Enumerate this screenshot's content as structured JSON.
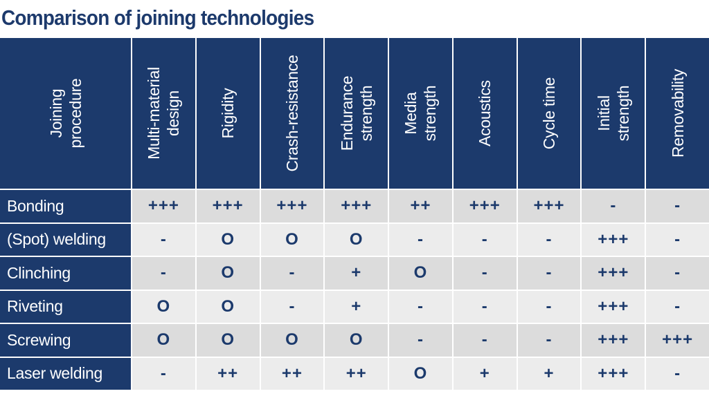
{
  "chart_data": {
    "type": "table",
    "title": "Comparison of joining technologies",
    "corner_header": "Joining\nprocedure",
    "columns": [
      "Multi-material\ndesign",
      "Rigidity",
      "Crash-resistance",
      "Endurance\nstrength",
      "Media\nstrength",
      "Acoustics",
      "Cycle time",
      "Initial\nstrength",
      "Removability"
    ],
    "rows": [
      {
        "label": "Bonding",
        "values": [
          "+++",
          "+++",
          "+++",
          "+++",
          "++",
          "+++",
          "+++",
          "-",
          "-"
        ]
      },
      {
        "label": "(Spot) welding",
        "values": [
          "-",
          "O",
          "O",
          "O",
          "-",
          "-",
          "-",
          "+++",
          "-"
        ]
      },
      {
        "label": "Clinching",
        "values": [
          "-",
          "O",
          "-",
          "+",
          "O",
          "-",
          "-",
          "+++",
          "-"
        ]
      },
      {
        "label": "Riveting",
        "values": [
          "O",
          "O",
          "-",
          "+",
          "-",
          "-",
          "-",
          "+++",
          "-"
        ]
      },
      {
        "label": "Screwing",
        "values": [
          "O",
          "O",
          "O",
          "O",
          "-",
          "-",
          "-",
          "+++",
          "+++"
        ]
      },
      {
        "label": "Laser welding",
        "values": [
          "-",
          "++",
          "++",
          "++",
          "O",
          "+",
          "+",
          "+++",
          "-"
        ]
      }
    ]
  },
  "colors": {
    "header_bg": "#1c3a6c",
    "title_text": "#1d3a6c",
    "row_odd_bg": "#dcdcdc",
    "row_even_bg": "#ececec"
  }
}
